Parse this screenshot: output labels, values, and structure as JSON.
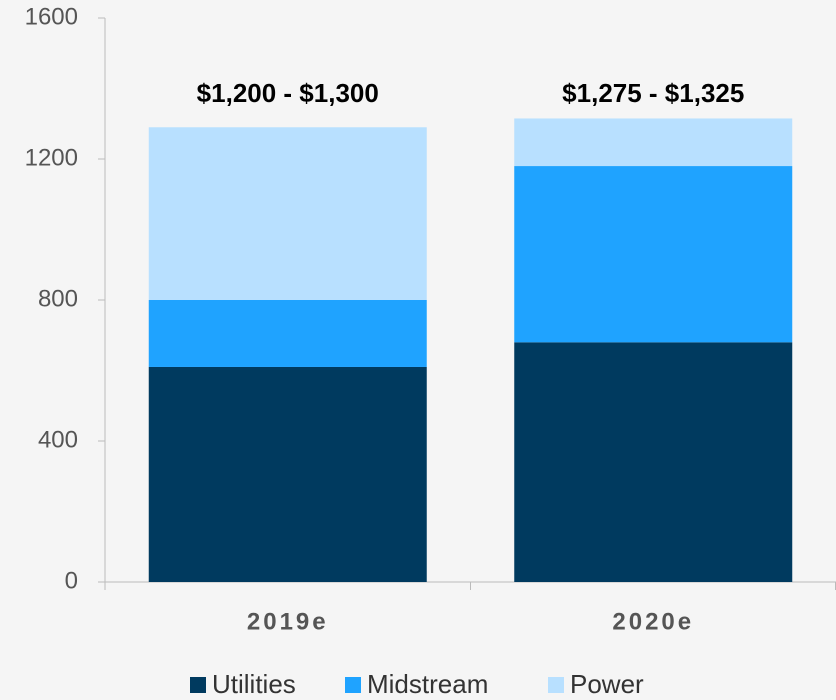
{
  "chart_data": {
    "type": "stacked_bar",
    "categories": [
      "2019e",
      "2020e"
    ],
    "series": [
      {
        "name": "Utilities",
        "color": "#003a5f",
        "values": [
          610,
          680
        ]
      },
      {
        "name": "Midstream",
        "color": "#1fa3ff",
        "values": [
          190,
          500
        ]
      },
      {
        "name": "Power",
        "color": "#b8e0ff",
        "values": [
          490,
          135
        ]
      }
    ],
    "range_labels": [
      "$1,200 - $1,300",
      "$1,275 - $1,325"
    ],
    "ylim": [
      0,
      1600
    ],
    "yticks": [
      0,
      400,
      800,
      1200,
      1600
    ],
    "grid": false,
    "legend": "bottom"
  }
}
